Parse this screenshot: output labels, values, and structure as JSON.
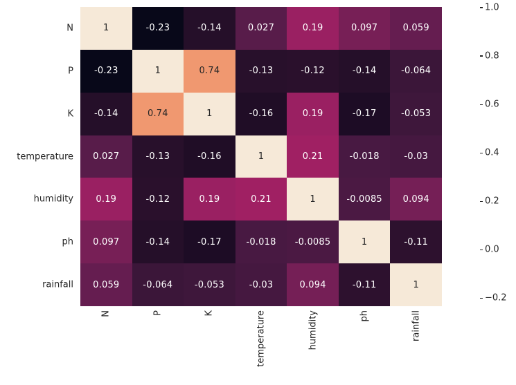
{
  "figure": {
    "background": "#ffffff",
    "axis_text_color": "#262626"
  },
  "chart_data": {
    "type": "heatmap",
    "title": "",
    "xlabel": "",
    "ylabel": "",
    "categories": [
      "N",
      "P",
      "K",
      "temperature",
      "humidity",
      "ph",
      "rainfall"
    ],
    "matrix": [
      [
        1,
        -0.23,
        -0.14,
        0.027,
        0.19,
        0.097,
        0.059
      ],
      [
        -0.23,
        1,
        0.74,
        -0.13,
        -0.12,
        -0.14,
        -0.064
      ],
      [
        -0.14,
        0.74,
        1,
        -0.16,
        0.19,
        -0.17,
        -0.053
      ],
      [
        0.027,
        -0.13,
        -0.16,
        1,
        0.21,
        -0.018,
        -0.03
      ],
      [
        0.19,
        -0.12,
        0.19,
        0.21,
        1,
        -0.0085,
        0.094
      ],
      [
        0.097,
        -0.14,
        -0.17,
        -0.018,
        -0.0085,
        1,
        -0.11
      ],
      [
        0.059,
        -0.064,
        -0.053,
        -0.03,
        0.094,
        -0.11,
        1
      ]
    ],
    "cell_labels": [
      [
        "1",
        "-0.23",
        "-0.14",
        "0.027",
        "0.19",
        "0.097",
        "0.059"
      ],
      [
        "-0.23",
        "1",
        "0.74",
        "-0.13",
        "-0.12",
        "-0.14",
        "-0.064"
      ],
      [
        "-0.14",
        "0.74",
        "1",
        "-0.16",
        "0.19",
        "-0.17",
        "-0.053"
      ],
      [
        "0.027",
        "-0.13",
        "-0.16",
        "1",
        "0.21",
        "-0.018",
        "-0.03"
      ],
      [
        "0.19",
        "-0.12",
        "0.19",
        "0.21",
        "1",
        "-0.0085",
        "0.094"
      ],
      [
        "0.097",
        "-0.14",
        "-0.17",
        "-0.018",
        "-0.0085",
        "1",
        "-0.11"
      ],
      [
        "0.059",
        "-0.064",
        "-0.053",
        "-0.03",
        "0.094",
        "-0.11",
        "1"
      ]
    ],
    "vmin": -0.23,
    "vmax": 1.0,
    "colormap_name": "rocket",
    "colormap_stops": [
      {
        "v": -0.23,
        "color": "#080819"
      },
      {
        "v": -0.2,
        "color": "#140A21"
      },
      {
        "v": -0.15,
        "color": "#230E27"
      },
      {
        "v": -0.1,
        "color": "#2F1230"
      },
      {
        "v": -0.05,
        "color": "#3F173C"
      },
      {
        "v": 0.0,
        "color": "#4D1A45"
      },
      {
        "v": 0.05,
        "color": "#611D4E"
      },
      {
        "v": 0.1,
        "color": "#781F57"
      },
      {
        "v": 0.15,
        "color": "#8C2060"
      },
      {
        "v": 0.2,
        "color": "#9E2063"
      },
      {
        "v": 0.25,
        "color": "#A92061"
      },
      {
        "v": 0.3,
        "color": "#B5205B"
      },
      {
        "v": 0.4,
        "color": "#CA2A52"
      },
      {
        "v": 0.5,
        "color": "#DC3B47"
      },
      {
        "v": 0.6,
        "color": "#E95842"
      },
      {
        "v": 0.7,
        "color": "#EF8059"
      },
      {
        "v": 0.74,
        "color": "#F09870"
      },
      {
        "v": 0.8,
        "color": "#F2A97F"
      },
      {
        "v": 0.9,
        "color": "#F5CDA7"
      },
      {
        "v": 1.0,
        "color": "#F6E9D8"
      }
    ],
    "colorbar_ticks": [
      {
        "label": "1.0",
        "value": 1.0
      },
      {
        "label": "0.8",
        "value": 0.8
      },
      {
        "label": "0.6",
        "value": 0.6
      },
      {
        "label": "0.4",
        "value": 0.4
      },
      {
        "label": "0.2",
        "value": 0.2
      },
      {
        "label": "0.0",
        "value": 0.0
      },
      {
        "label": "−0.2",
        "value": -0.2
      }
    ],
    "legend_position": "right-colorbar",
    "grid": false,
    "annotation_text_light": "#ffffff",
    "annotation_text_dark": "#262626"
  }
}
